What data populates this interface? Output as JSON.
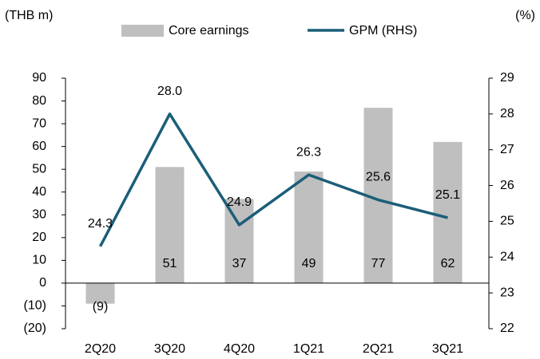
{
  "chart_data": {
    "type": "combo",
    "y_label": "(THB m)",
    "y2_label": "(%)",
    "categories": [
      "2Q20",
      "3Q20",
      "4Q20",
      "1Q21",
      "2Q21",
      "3Q21"
    ],
    "series": [
      {
        "name": "Core earnings",
        "type": "bar",
        "color": "#bfbfbf",
        "values": [
          -9,
          51,
          37,
          49,
          77,
          62
        ],
        "value_labels": [
          "(9)",
          "51",
          "37",
          "49",
          "77",
          "62"
        ]
      },
      {
        "name": "GPM (RHS)",
        "type": "line",
        "axis": "y2",
        "color": "#1b5e78",
        "values": [
          24.3,
          28.0,
          24.9,
          26.3,
          25.6,
          25.1
        ],
        "value_labels": [
          "24.3",
          "28.0",
          "24.9",
          "26.3",
          "25.6",
          "25.1"
        ]
      }
    ],
    "ylim": [
      -20,
      90
    ],
    "yticks": [
      {
        "value": -20,
        "label": "(20)"
      },
      {
        "value": -10,
        "label": "(10)"
      },
      0,
      10,
      20,
      30,
      40,
      50,
      60,
      70,
      80,
      90
    ],
    "y2lim": [
      22,
      29
    ],
    "y2ticks": [
      22,
      23,
      24,
      25,
      26,
      27,
      28,
      29
    ],
    "legend": "top"
  }
}
